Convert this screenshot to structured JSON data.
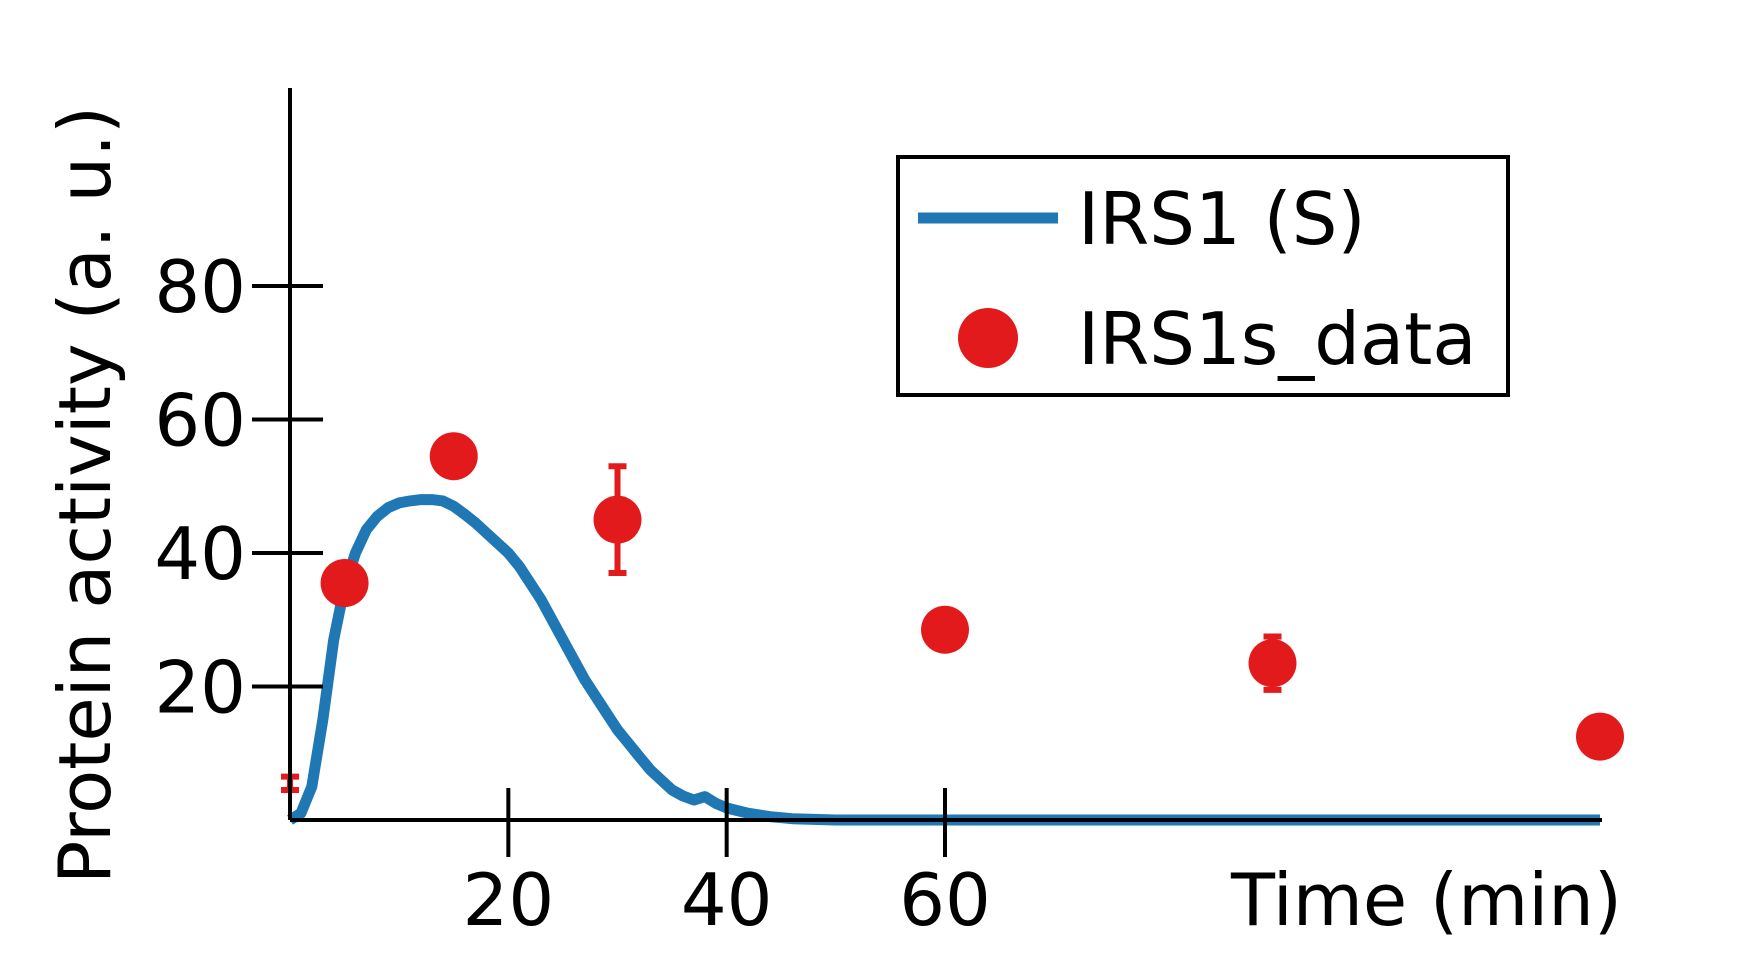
{
  "chart_data": {
    "type": "line",
    "xlabel": "Time (min)",
    "ylabel": "Protein activity (a. u.)",
    "xlim": [
      0,
      120
    ],
    "ylim": [
      0,
      110
    ],
    "xticks": [
      20,
      40,
      60
    ],
    "yticks": [
      20,
      40,
      60,
      80
    ],
    "grid": false,
    "legend_position": "top-right",
    "series": [
      {
        "name": "IRS1 (S)",
        "kind": "line",
        "color": "#1f77b4",
        "x": [
          0,
          1,
          2,
          3,
          4,
          5,
          6,
          7,
          8,
          9,
          10,
          11,
          12,
          13,
          14,
          15,
          16,
          17,
          18,
          19,
          20,
          21,
          22,
          23,
          24,
          25,
          26,
          27,
          28,
          29,
          30,
          31,
          32,
          33,
          34,
          35,
          36,
          37,
          38,
          39,
          40,
          42,
          44,
          46,
          50,
          60,
          80,
          100,
          120
        ],
        "y": [
          0,
          1,
          5,
          15,
          27,
          35,
          40,
          43.5,
          45.5,
          46.8,
          47.5,
          47.8,
          48,
          48,
          47.8,
          47,
          45.8,
          44.5,
          43,
          41.5,
          40,
          38,
          35.5,
          33,
          30,
          27,
          24,
          21,
          18.5,
          16,
          13.5,
          11.5,
          9.5,
          7.5,
          6,
          4.5,
          3.6,
          3,
          3.5,
          2.5,
          1.8,
          1,
          0.5,
          0.2,
          0,
          0,
          0,
          0,
          0
        ]
      },
      {
        "name": "IRS1s_data",
        "kind": "scatter",
        "color": "#e31a1c",
        "x": [
          0,
          5,
          15,
          30,
          60,
          90,
          120
        ],
        "y": [
          5.5,
          35.5,
          54.5,
          45,
          28.5,
          23.5,
          12.5
        ],
        "err": [
          1,
          1.5,
          2.5,
          8,
          1,
          4,
          1
        ]
      }
    ]
  }
}
